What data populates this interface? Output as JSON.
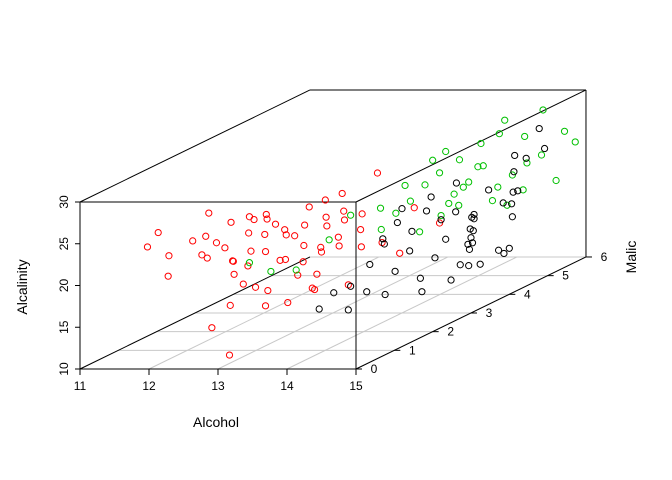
{
  "chart_data": {
    "type": "scatter",
    "dimension": "3d",
    "title": "",
    "xlabel": "Alcohol",
    "ylabel": "Malic",
    "zlabel": "Alcalinity",
    "xlim": [
      11,
      15
    ],
    "ylim": [
      0,
      6
    ],
    "zlim": [
      10,
      30
    ],
    "x_ticks": [
      "11",
      "12",
      "13",
      "14",
      "15"
    ],
    "y_ticks": [
      "0",
      "1",
      "2",
      "3",
      "4",
      "5",
      "6"
    ],
    "z_ticks": [
      "10",
      "15",
      "20",
      "25",
      "30"
    ],
    "grid": "floor",
    "legend": "none",
    "marker": "open-circle",
    "series": [
      {
        "color": "#ff0000",
        "points": [
          [
            11.8,
            0.6,
            25.0
          ],
          [
            11.7,
            0.5,
            23.5
          ],
          [
            11.9,
            0.7,
            22.0
          ],
          [
            12.0,
            0.5,
            20.0
          ],
          [
            12.3,
            0.6,
            24.0
          ],
          [
            12.4,
            0.8,
            21.5
          ],
          [
            12.6,
            0.4,
            25.0
          ],
          [
            12.6,
            0.9,
            22.5
          ],
          [
            12.7,
            0.5,
            24.0
          ],
          [
            12.8,
            0.7,
            26.0
          ],
          [
            12.9,
            0.6,
            20.0
          ],
          [
            12.9,
            1.0,
            26.0
          ],
          [
            13.0,
            0.4,
            22.0
          ],
          [
            13.0,
            0.8,
            24.5
          ],
          [
            13.1,
            0.6,
            21.0
          ],
          [
            13.1,
            1.1,
            25.5
          ],
          [
            13.2,
            0.5,
            23.0
          ],
          [
            13.2,
            0.9,
            26.5
          ],
          [
            13.3,
            0.7,
            22.5
          ],
          [
            13.3,
            1.2,
            24.0
          ],
          [
            13.4,
            0.5,
            25.0
          ],
          [
            13.4,
            0.9,
            21.0
          ],
          [
            13.5,
            0.6,
            26.0
          ],
          [
            13.5,
            1.1,
            23.5
          ],
          [
            13.6,
            0.7,
            24.5
          ],
          [
            13.6,
            1.3,
            26.5
          ],
          [
            13.7,
            0.5,
            22.0
          ],
          [
            13.7,
            1.0,
            25.0
          ],
          [
            13.8,
            0.8,
            23.0
          ],
          [
            13.8,
            1.4,
            24.0
          ],
          [
            13.9,
            0.6,
            21.5
          ],
          [
            13.9,
            1.2,
            25.5
          ],
          [
            14.0,
            0.9,
            22.0
          ],
          [
            14.0,
            1.5,
            24.5
          ],
          [
            14.1,
            0.7,
            23.0
          ],
          [
            14.1,
            1.3,
            26.0
          ],
          [
            14.2,
            1.0,
            22.5
          ],
          [
            14.2,
            1.6,
            25.0
          ],
          [
            14.3,
            0.8,
            24.0
          ],
          [
            14.3,
            1.4,
            21.5
          ],
          [
            13.2,
            0.3,
            19.5
          ],
          [
            13.5,
            0.4,
            18.5
          ],
          [
            13.1,
            0.8,
            18.0
          ],
          [
            13.6,
            1.0,
            19.0
          ],
          [
            13.9,
            0.9,
            17.5
          ],
          [
            13.3,
            0.7,
            16.0
          ],
          [
            12.9,
            0.5,
            16.5
          ],
          [
            13.7,
            1.2,
            17.0
          ],
          [
            12.8,
            0.2,
            14.5
          ],
          [
            13.4,
            1.1,
            15.5
          ],
          [
            13.0,
            0.3,
            11.0
          ],
          [
            13.6,
            1.5,
            18.0
          ],
          [
            14.0,
            1.6,
            16.5
          ],
          [
            12.7,
            0.3,
            28.0
          ],
          [
            13.8,
            1.8,
            27.0
          ],
          [
            14.2,
            2.0,
            29.0
          ],
          [
            14.4,
            2.6,
            23.5
          ],
          [
            14.6,
            2.9,
            21.0
          ],
          [
            14.3,
            2.4,
            18.5
          ],
          [
            13.3,
            0.4,
            27.0
          ],
          [
            13.1,
            0.2,
            22.5
          ],
          [
            12.6,
            0.3,
            23.0
          ],
          [
            13.9,
            2.1,
            22.0
          ],
          [
            14.1,
            2.3,
            20.0
          ],
          [
            14.0,
            1.0,
            28.0
          ]
        ]
      },
      {
        "color": "#00c000",
        "points": [
          [
            13.7,
            3.0,
            20.0
          ],
          [
            13.8,
            3.2,
            21.5
          ],
          [
            13.9,
            3.4,
            22.5
          ],
          [
            14.0,
            3.6,
            24.0
          ],
          [
            14.1,
            3.8,
            25.0
          ],
          [
            14.2,
            4.0,
            22.0
          ],
          [
            14.3,
            4.2,
            23.0
          ],
          [
            14.4,
            4.4,
            24.5
          ],
          [
            14.5,
            4.6,
            21.5
          ],
          [
            14.6,
            4.8,
            22.5
          ],
          [
            14.7,
            5.0,
            23.5
          ],
          [
            14.8,
            5.2,
            24.0
          ],
          [
            14.9,
            5.4,
            20.5
          ],
          [
            14.4,
            3.5,
            22.0
          ],
          [
            14.5,
            3.7,
            23.5
          ],
          [
            14.6,
            3.9,
            25.5
          ],
          [
            14.7,
            4.1,
            21.0
          ],
          [
            14.8,
            4.3,
            20.0
          ],
          [
            14.0,
            4.5,
            25.0
          ],
          [
            14.2,
            4.7,
            26.5
          ],
          [
            14.3,
            5.0,
            27.0
          ],
          [
            14.5,
            5.3,
            26.0
          ],
          [
            14.1,
            5.5,
            27.5
          ],
          [
            14.6,
            5.6,
            28.5
          ],
          [
            14.8,
            5.8,
            25.5
          ],
          [
            14.9,
            5.9,
            24.0
          ],
          [
            13.8,
            2.8,
            23.0
          ],
          [
            14.2,
            3.1,
            19.5
          ],
          [
            14.4,
            3.3,
            21.0
          ],
          [
            14.6,
            3.4,
            22.0
          ],
          [
            13.1,
            1.2,
            19.0
          ],
          [
            13.3,
            1.5,
            18.5
          ],
          [
            12.9,
            1.0,
            20.5
          ],
          [
            13.5,
            2.0,
            21.0
          ],
          [
            13.7,
            2.2,
            23.5
          ],
          [
            14.3,
            3.6,
            28.0
          ],
          [
            14.0,
            3.8,
            26.5
          ],
          [
            14.7,
            4.9,
            20.5
          ],
          [
            14.1,
            2.9,
            25.5
          ]
        ]
      },
      {
        "color": "#000000",
        "points": [
          [
            14.2,
            1.8,
            18.5
          ],
          [
            14.3,
            2.0,
            20.5
          ],
          [
            14.4,
            2.1,
            17.0
          ],
          [
            14.5,
            2.3,
            19.0
          ],
          [
            14.6,
            2.4,
            15.5
          ],
          [
            14.7,
            2.6,
            17.5
          ],
          [
            14.8,
            2.7,
            19.5
          ],
          [
            14.9,
            2.9,
            16.0
          ],
          [
            14.9,
            3.1,
            18.0
          ],
          [
            14.8,
            3.3,
            15.0
          ],
          [
            14.7,
            3.5,
            16.5
          ],
          [
            14.6,
            3.7,
            18.5
          ],
          [
            14.5,
            3.9,
            17.0
          ],
          [
            14.4,
            4.1,
            19.0
          ],
          [
            14.3,
            4.3,
            15.5
          ],
          [
            14.2,
            4.5,
            16.5
          ],
          [
            14.1,
            4.7,
            18.0
          ],
          [
            14.0,
            2.5,
            20.0
          ],
          [
            14.1,
            2.7,
            21.5
          ],
          [
            14.2,
            2.9,
            20.0
          ],
          [
            14.3,
            3.1,
            22.0
          ],
          [
            14.4,
            3.3,
            20.5
          ],
          [
            14.5,
            3.5,
            21.0
          ],
          [
            14.6,
            3.8,
            19.5
          ],
          [
            14.7,
            4.0,
            22.5
          ],
          [
            14.8,
            4.2,
            20.5
          ],
          [
            14.9,
            4.4,
            21.5
          ],
          [
            14.7,
            4.6,
            19.5
          ],
          [
            14.6,
            4.8,
            17.5
          ],
          [
            14.5,
            5.0,
            20.0
          ],
          [
            14.4,
            5.2,
            22.0
          ],
          [
            14.3,
            5.4,
            23.5
          ],
          [
            13.8,
            1.2,
            14.5
          ],
          [
            13.9,
            1.4,
            16.0
          ],
          [
            14.0,
            1.6,
            13.5
          ],
          [
            14.1,
            1.9,
            15.0
          ],
          [
            14.2,
            2.2,
            14.0
          ],
          [
            14.4,
            2.8,
            13.0
          ],
          [
            14.6,
            3.2,
            13.5
          ],
          [
            14.8,
            3.6,
            14.5
          ],
          [
            14.9,
            3.9,
            15.5
          ],
          [
            14.7,
            4.4,
            14.0
          ],
          [
            14.5,
            4.9,
            13.5
          ],
          [
            14.0,
            3.0,
            22.5
          ],
          [
            14.2,
            3.4,
            23.0
          ],
          [
            14.4,
            3.7,
            24.0
          ],
          [
            14.8,
            4.8,
            24.5
          ],
          [
            14.9,
            5.1,
            25.0
          ],
          [
            14.6,
            5.5,
            26.5
          ],
          [
            14.2,
            1.3,
            17.0
          ]
        ]
      }
    ]
  }
}
